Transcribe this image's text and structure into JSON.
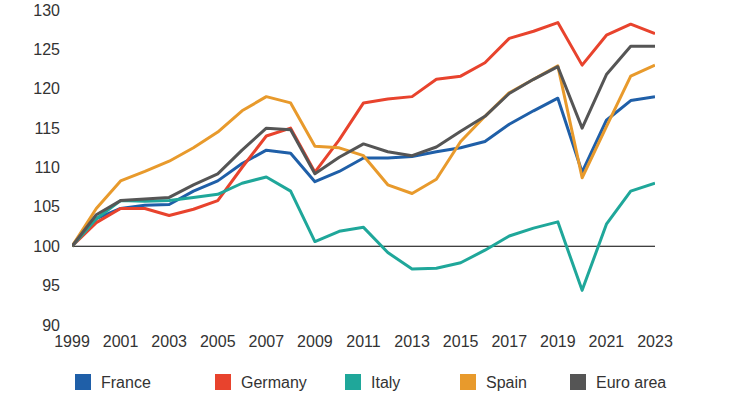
{
  "chart_data": {
    "type": "line",
    "x": [
      1999,
      2000,
      2001,
      2002,
      2003,
      2004,
      2005,
      2006,
      2007,
      2008,
      2009,
      2010,
      2011,
      2012,
      2013,
      2014,
      2015,
      2016,
      2017,
      2018,
      2019,
      2020,
      2021,
      2022,
      2023
    ],
    "xlim": [
      1999,
      2023
    ],
    "xticks": [
      1999,
      2001,
      2003,
      2005,
      2007,
      2009,
      2011,
      2013,
      2015,
      2017,
      2019,
      2021,
      2023
    ],
    "ylim": [
      90,
      130
    ],
    "yticks": [
      90,
      95,
      100,
      105,
      110,
      115,
      120,
      125,
      130
    ],
    "reference_line": 100,
    "grid": false,
    "legend": "bottom",
    "series": [
      {
        "name": "France",
        "color": "#1f5fa8",
        "values": [
          100,
          103.5,
          104.8,
          105.2,
          105.3,
          107,
          108.3,
          110.5,
          112.2,
          111.8,
          108.2,
          109.5,
          111.2,
          111.2,
          111.4,
          112,
          112.5,
          113.3,
          115.5,
          117.2,
          118.8,
          109.4,
          116,
          118.5,
          119
        ]
      },
      {
        "name": "Germany",
        "color": "#e8432d",
        "values": [
          100,
          103,
          104.8,
          104.8,
          103.9,
          104.7,
          105.8,
          110,
          114,
          115,
          109.4,
          113.5,
          118.2,
          118.7,
          119,
          121.2,
          121.6,
          123.3,
          126.4,
          127.3,
          128.4,
          123,
          126.8,
          128.2,
          127
        ]
      },
      {
        "name": "Italy",
        "color": "#1fa79a",
        "values": [
          100,
          103.5,
          105.8,
          105.7,
          105.8,
          106.2,
          106.6,
          108,
          108.8,
          107,
          100.6,
          101.9,
          102.4,
          99.2,
          97.1,
          97.2,
          97.9,
          99.5,
          101.3,
          102.3,
          103.1,
          94.4,
          102.8,
          107,
          108
        ]
      },
      {
        "name": "Spain",
        "color": "#e89a2c",
        "values": [
          100,
          104.8,
          108.3,
          109.5,
          110.8,
          112.5,
          114.5,
          117.2,
          119,
          118.2,
          112.7,
          112.5,
          111.5,
          107.8,
          106.7,
          108.5,
          113.3,
          116.5,
          119.5,
          121.2,
          122.9,
          108.7,
          115.2,
          121.6,
          123
        ]
      },
      {
        "name": "Euro area",
        "color": "#555555",
        "values": [
          100,
          104,
          105.8,
          106,
          106.2,
          107.8,
          109.2,
          112.2,
          115,
          114.8,
          109.2,
          111.3,
          113,
          112,
          111.5,
          112.6,
          114.6,
          116.5,
          119.4,
          121.2,
          122.8,
          115,
          121.8,
          125.4,
          125.4
        ]
      }
    ]
  }
}
